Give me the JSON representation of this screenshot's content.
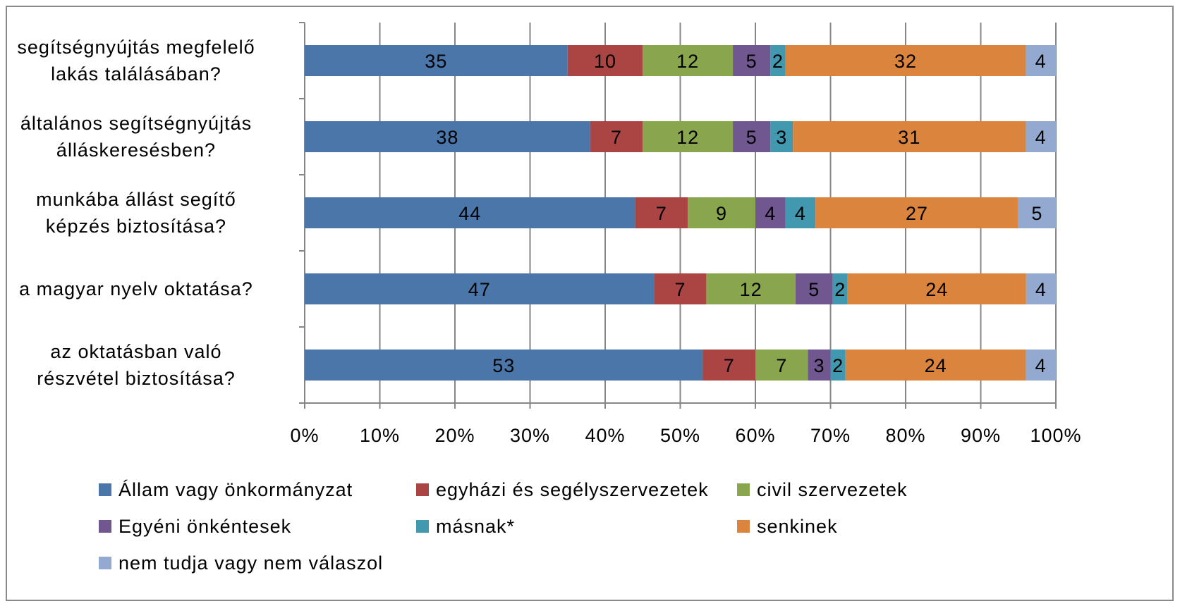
{
  "chart_data": {
    "type": "bar",
    "orientation": "horizontal",
    "stacked": "percent",
    "categories": [
      [
        "segítségnyújtás megfelelő",
        "lakás találásában?"
      ],
      [
        "általános segítségnyújtás",
        "álláskeresésben?"
      ],
      [
        "munkába állást segítő",
        "képzés biztosítása?"
      ],
      [
        "a magyar nyelv oktatása?"
      ],
      [
        "az oktatásban való",
        "részvétel biztosítása?"
      ]
    ],
    "series": [
      {
        "name": "Állam vagy önkormányzat",
        "color": "#4a76aa",
        "values": [
          35,
          38,
          44,
          47,
          53
        ]
      },
      {
        "name": "egyházi és segélyszervezetek",
        "color": "#aa4544",
        "values": [
          10,
          7,
          7,
          7,
          7
        ]
      },
      {
        "name": "civil szervezetek",
        "color": "#89a54e",
        "values": [
          12,
          12,
          9,
          12,
          7
        ]
      },
      {
        "name": "Egyéni önkéntesek",
        "color": "#71578f",
        "values": [
          5,
          5,
          4,
          5,
          3
        ]
      },
      {
        "name": "másnak*",
        "color": "#4198af",
        "values": [
          2,
          3,
          4,
          2,
          2
        ]
      },
      {
        "name": "senkinek",
        "color": "#db843d",
        "values": [
          32,
          31,
          27,
          24,
          24
        ]
      },
      {
        "name": "nem tudja vagy nem válaszol",
        "color": "#93a9cf",
        "values": [
          4,
          4,
          5,
          4,
          4
        ]
      }
    ],
    "xaxis_ticks": [
      "0%",
      "10%",
      "20%",
      "30%",
      "40%",
      "50%",
      "60%",
      "70%",
      "80%",
      "90%",
      "100%"
    ],
    "xlim": [
      0,
      100
    ],
    "grid": true,
    "legend_position": "bottom",
    "title": "",
    "xlabel": "",
    "ylabel": ""
  }
}
